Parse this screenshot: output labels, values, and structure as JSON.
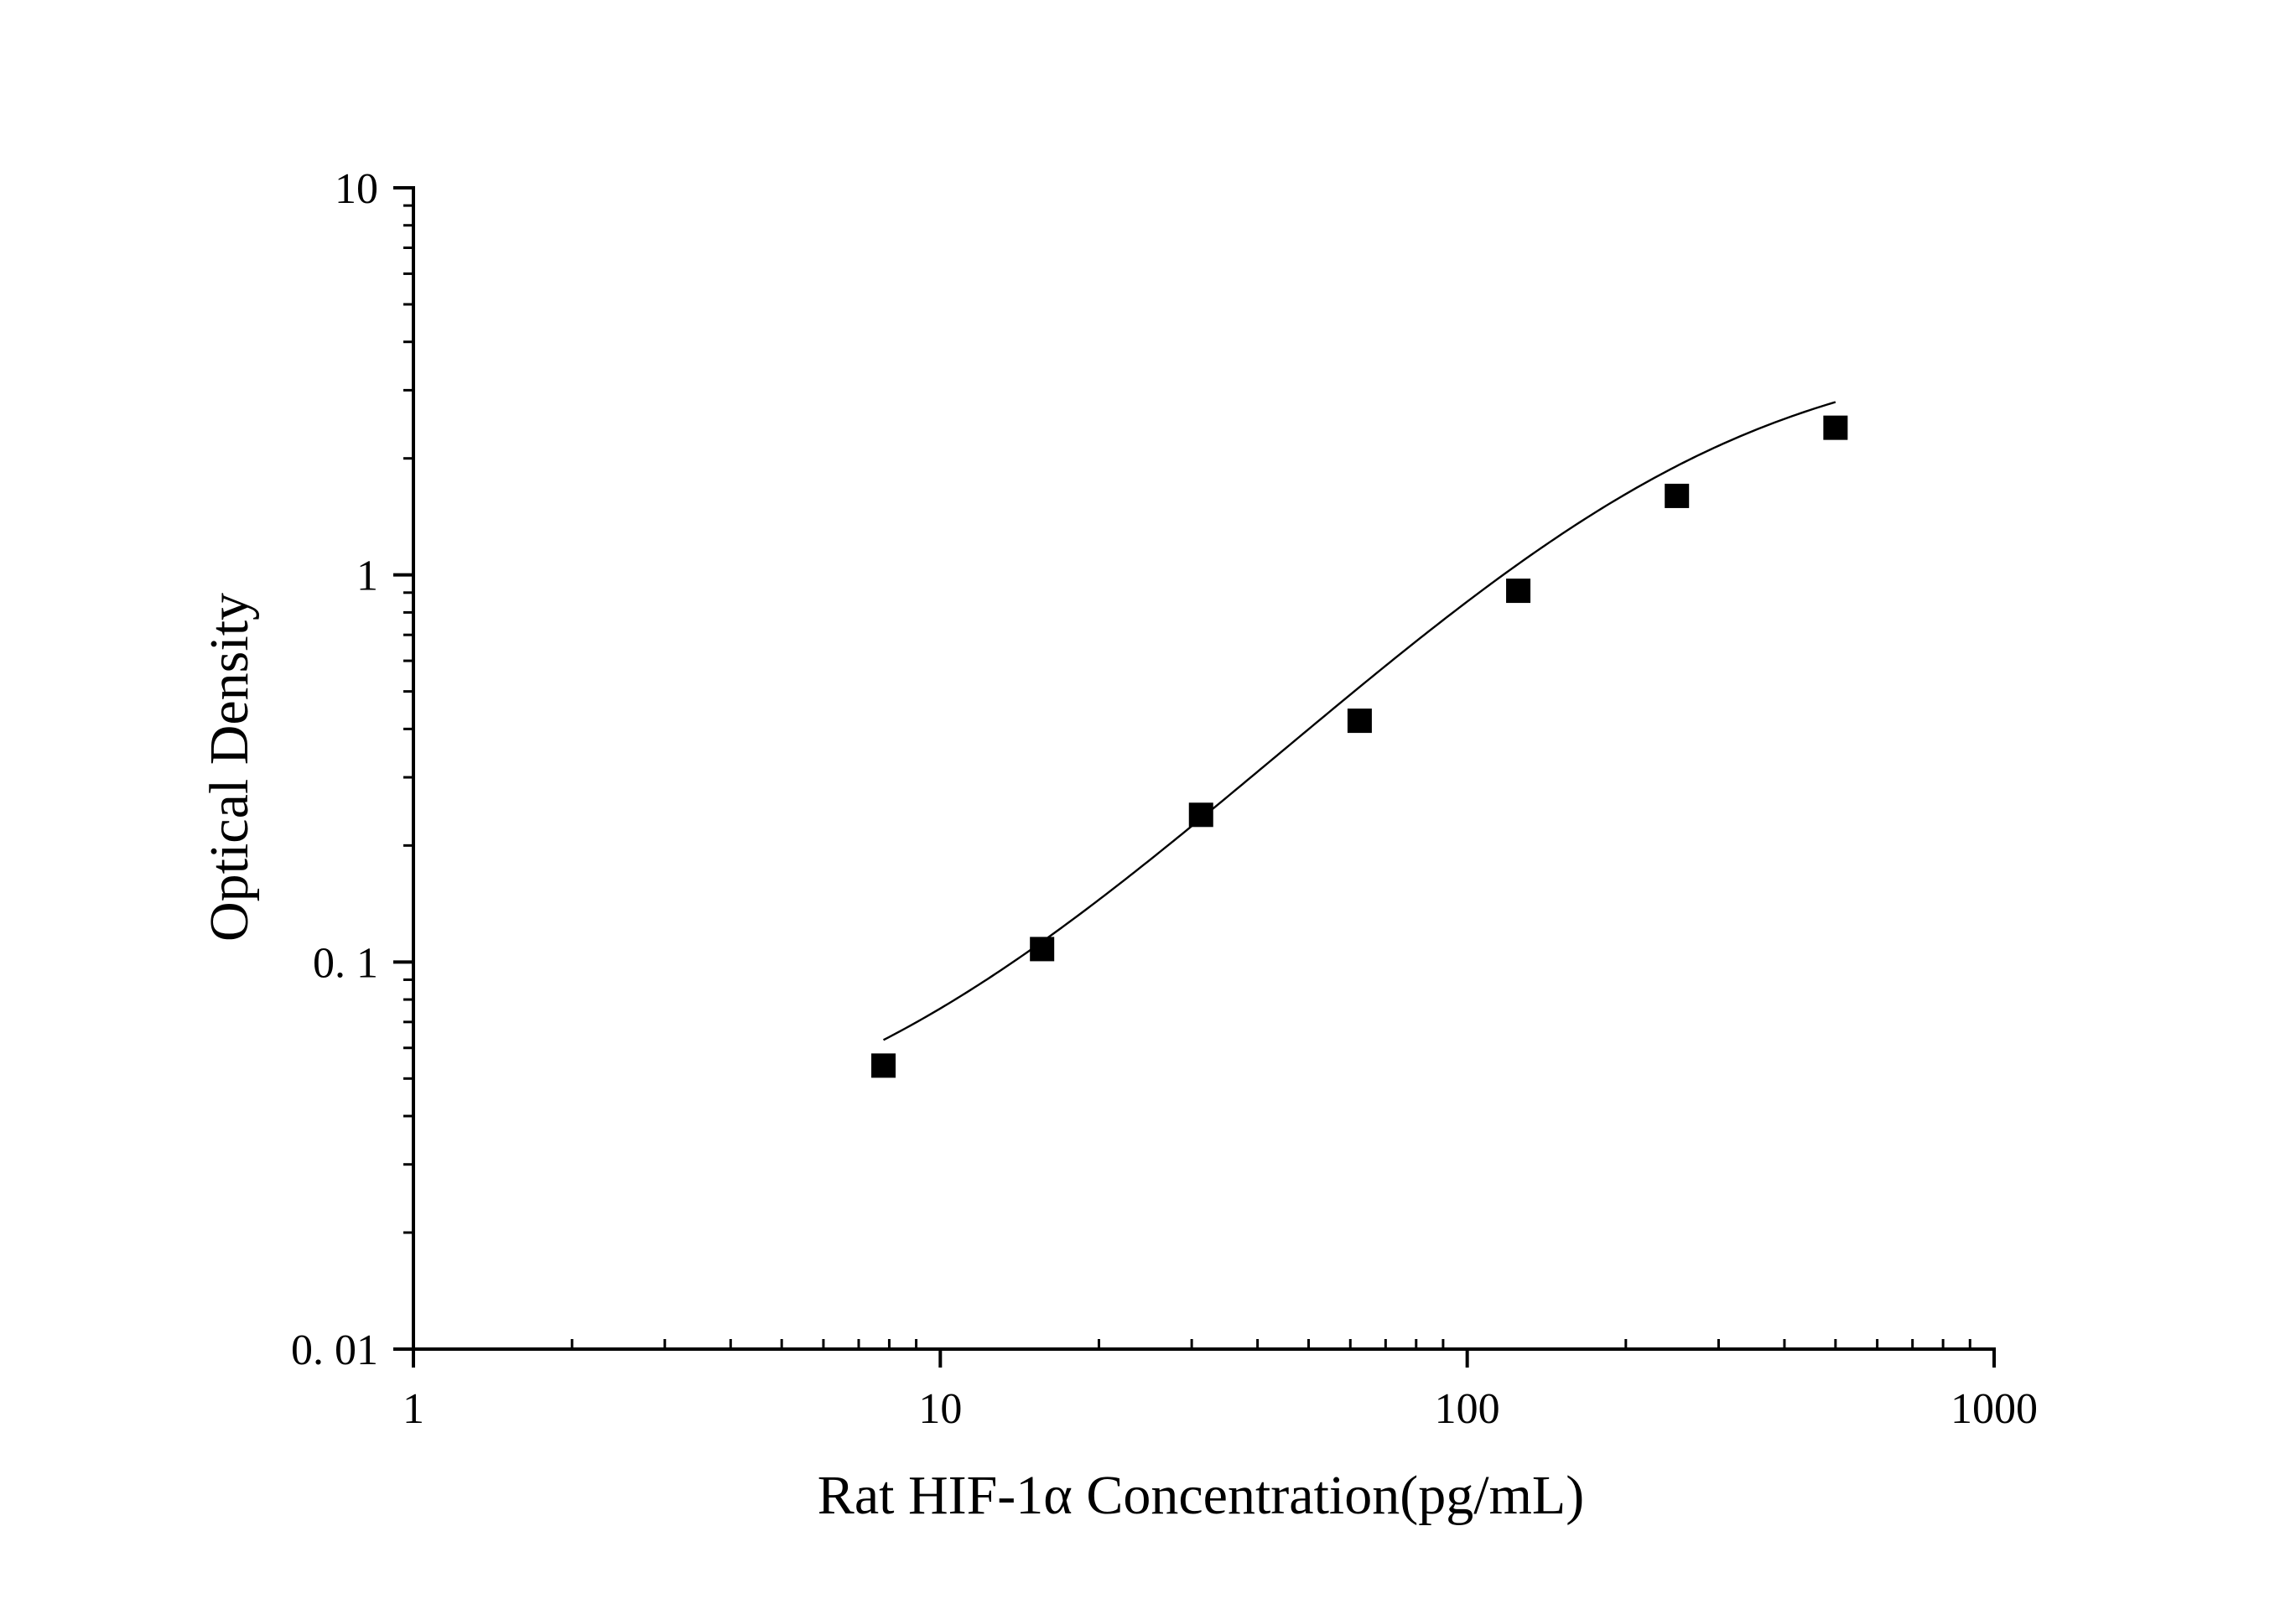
{
  "chart_data": {
    "type": "scatter",
    "title": "",
    "xlabel": "Rat HIF-1α Concentration(pg/mL)",
    "ylabel": "Optical Density",
    "xscale": "log",
    "yscale": "log",
    "xlim": [
      1,
      1000
    ],
    "ylim": [
      0.01,
      10
    ],
    "x_ticks": [
      1,
      10,
      100,
      1000
    ],
    "x_tick_labels": [
      "1",
      "10",
      "100",
      "1000"
    ],
    "y_ticks": [
      0.01,
      0.1,
      1,
      10
    ],
    "y_tick_labels": [
      "0. 01",
      "0. 1",
      "1",
      "10"
    ],
    "grid": false,
    "legend": "none",
    "series": [
      {
        "marker": "square",
        "color": "#000000",
        "x": [
          7.8,
          15.6,
          31.25,
          62.5,
          125,
          250,
          500
        ],
        "y": [
          0.054,
          0.108,
          0.24,
          0.42,
          0.91,
          1.6,
          2.4
        ]
      }
    ],
    "fit_curve": {
      "kind": "4PL",
      "color": "#000000",
      "a": 0.03,
      "b": 1.35,
      "c": 270,
      "d": 4.0,
      "x_range": [
        7.8,
        500
      ]
    }
  }
}
